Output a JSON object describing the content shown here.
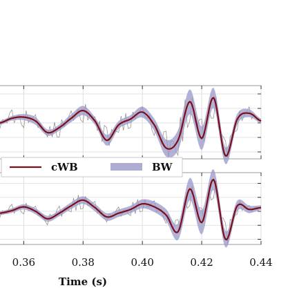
{
  "chart_data": {
    "type": "line",
    "xlabel": "Time (s)",
    "x_ticks": [
      "0.36",
      "0.38",
      "0.40",
      "0.42",
      "0.44"
    ],
    "x_tick_values": [
      0.36,
      0.38,
      0.4,
      0.42,
      0.44
    ],
    "xlim": [
      0.352,
      0.44
    ],
    "ylim": [
      -1,
      1
    ],
    "grid": true,
    "legend": {
      "placement": "between-panels-left",
      "entries": [
        {
          "label": "cWB",
          "style": "line",
          "color": "#7a0f17"
        },
        {
          "label": "BW",
          "style": "band",
          "color": "#9b97c9"
        }
      ]
    },
    "panels": [
      {
        "name": "upper",
        "t": [
          0.352,
          0.356,
          0.36,
          0.364,
          0.368,
          0.372,
          0.376,
          0.38,
          0.384,
          0.388,
          0.392,
          0.396,
          0.4,
          0.404,
          0.408,
          0.412,
          0.416,
          0.42,
          0.424,
          0.428,
          0.432,
          0.436,
          0.44
        ],
        "cWB": [
          0.0,
          0.12,
          0.15,
          0.05,
          -0.25,
          -0.12,
          0.12,
          0.32,
          0.05,
          -0.45,
          -0.05,
          0.1,
          0.28,
          -0.05,
          -0.65,
          -0.45,
          0.55,
          -0.4,
          0.65,
          -0.85,
          0.1,
          0.25,
          0.05
        ],
        "BW_half_width": [
          0.05,
          0.06,
          0.08,
          0.1,
          0.08,
          0.08,
          0.1,
          0.12,
          0.1,
          0.14,
          0.1,
          0.1,
          0.14,
          0.16,
          0.22,
          0.26,
          0.32,
          0.3,
          0.26,
          0.22,
          0.14,
          0.1,
          0.06
        ],
        "data_noise": [
          0.25,
          -0.4,
          0.5,
          -0.3,
          0.2,
          0.45,
          -0.35,
          0.55,
          -0.2,
          -0.6,
          0.35,
          0.4,
          -0.25,
          0.5,
          -0.8,
          0.7,
          0.9,
          -0.9,
          0.95,
          -0.7,
          0.5,
          -0.3,
          0.2
        ]
      },
      {
        "name": "lower",
        "t": [
          0.352,
          0.356,
          0.36,
          0.364,
          0.368,
          0.372,
          0.376,
          0.38,
          0.384,
          0.388,
          0.392,
          0.396,
          0.4,
          0.404,
          0.408,
          0.412,
          0.416,
          0.42,
          0.424,
          0.428,
          0.432,
          0.436,
          0.44
        ],
        "cWB": [
          -0.05,
          0.02,
          0.12,
          0.0,
          -0.2,
          -0.05,
          0.15,
          0.3,
          0.1,
          -0.15,
          -0.05,
          0.05,
          0.2,
          0.12,
          -0.1,
          -0.55,
          0.6,
          -0.3,
          0.85,
          -0.75,
          0.15,
          0.05,
          0.1
        ],
        "BW_half_width": [
          0.05,
          0.06,
          0.07,
          0.08,
          0.08,
          0.08,
          0.09,
          0.1,
          0.1,
          0.1,
          0.1,
          0.1,
          0.12,
          0.14,
          0.16,
          0.22,
          0.3,
          0.32,
          0.28,
          0.22,
          0.14,
          0.1,
          0.06
        ],
        "data_noise": [
          0.2,
          -0.3,
          0.35,
          -0.25,
          0.3,
          -0.35,
          0.3,
          0.4,
          -0.3,
          0.25,
          -0.3,
          0.3,
          0.35,
          -0.3,
          0.4,
          -0.6,
          0.8,
          -0.7,
          0.9,
          -0.8,
          0.4,
          -0.2,
          0.25
        ]
      }
    ]
  }
}
